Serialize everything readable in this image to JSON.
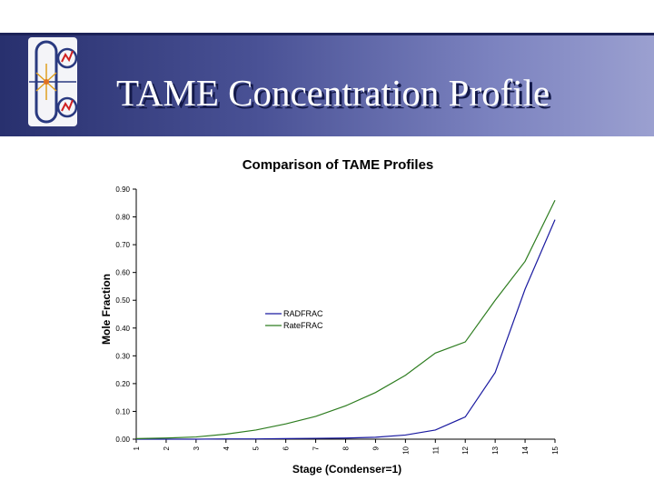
{
  "slide": {
    "title": "TAME Concentration Profile"
  },
  "logo": {
    "icon": "distillation-column-logo-icon"
  },
  "colors": {
    "banner_dark": "#28306e",
    "banner_light": "#9ba0d0",
    "radfrac": "#1a1aa0",
    "ratefrac": "#2e7d20"
  },
  "chart_data": {
    "type": "line",
    "title": "Comparison of TAME Profiles",
    "xlabel": "Stage (Condenser=1)",
    "ylabel": "Mole Fraction",
    "categories": [
      "1",
      "2",
      "3",
      "4",
      "5",
      "6",
      "7",
      "8",
      "9",
      "10",
      "11",
      "12",
      "13",
      "14",
      "15"
    ],
    "ylim": [
      0,
      0.9
    ],
    "yticks": [
      "0.00",
      "0.10",
      "0.20",
      "0.30",
      "0.40",
      "0.50",
      "0.60",
      "0.70",
      "0.80",
      "0.90"
    ],
    "grid": false,
    "legend_position": "center",
    "series": [
      {
        "name": "RADFRAC",
        "color": "#1a1aa0",
        "values": [
          0.0,
          0.0,
          0.0,
          0.001,
          0.001,
          0.002,
          0.003,
          0.004,
          0.007,
          0.015,
          0.033,
          0.08,
          0.24,
          0.54,
          0.79
        ]
      },
      {
        "name": "RateFRAC",
        "color": "#2e7d20",
        "values": [
          0.002,
          0.004,
          0.008,
          0.018,
          0.033,
          0.055,
          0.082,
          0.12,
          0.168,
          0.23,
          0.31,
          0.35,
          0.5,
          0.64,
          0.86
        ]
      }
    ]
  }
}
